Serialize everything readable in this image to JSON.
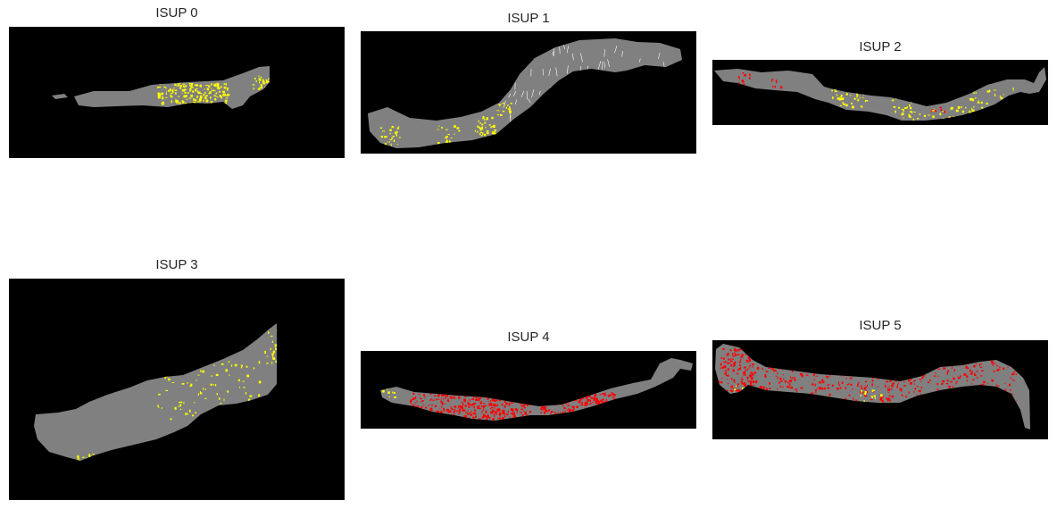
{
  "colors": {
    "background": "#000000",
    "tissue": "#808080",
    "pattern_a": "#ffff00",
    "pattern_b": "#ff0000"
  },
  "panels": [
    {
      "title": "ISUP 0"
    },
    {
      "title": "ISUP 1"
    },
    {
      "title": "ISUP 2"
    },
    {
      "title": "ISUP 3"
    },
    {
      "title": "ISUP 4"
    },
    {
      "title": "ISUP 5"
    }
  ]
}
